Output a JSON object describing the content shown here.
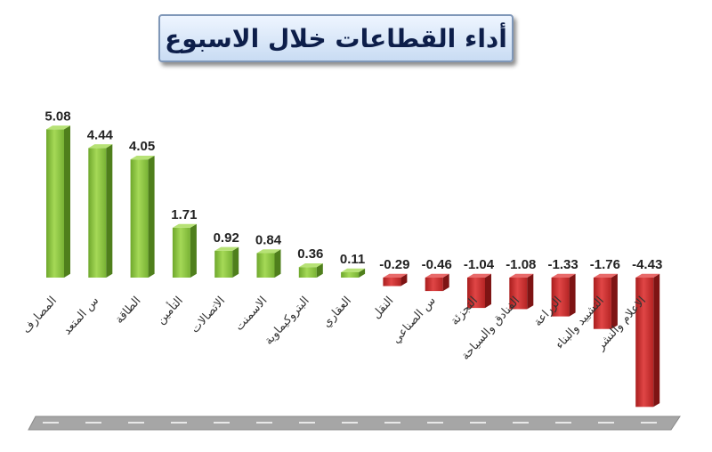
{
  "chart_data": {
    "type": "bar",
    "title": "أداء القطاعات خلال الاسبوع",
    "categories": [
      "المصارف",
      "س المتعد",
      "الطاقة",
      "التأمين",
      "الاتصالات",
      "الاسمنت",
      "البتروكيماوية",
      "العقاري",
      "النقل",
      "س الصناعي",
      "التجزئة",
      "الفنادق والسياحة",
      "الزراعة",
      "التشييد والبناء",
      "الاعلام والنشر"
    ],
    "values": [
      5.08,
      4.44,
      4.05,
      1.71,
      0.92,
      0.84,
      0.36,
      0.11,
      -0.29,
      -0.46,
      -1.04,
      -1.08,
      -1.33,
      -1.76,
      -4.43
    ],
    "value_labels": [
      "5.08",
      "4.44",
      "4.05",
      "1.71",
      "0.92",
      "0.84",
      "0.36",
      "0.11",
      "-0.29",
      "-0.46",
      "-1.04",
      "-1.08",
      "-1.33",
      "-1.76",
      "-4.43"
    ],
    "colors": {
      "positive": "#8cc63f",
      "negative": "#cc2b2b",
      "floor": "#a6a6a6"
    },
    "grid": false
  }
}
